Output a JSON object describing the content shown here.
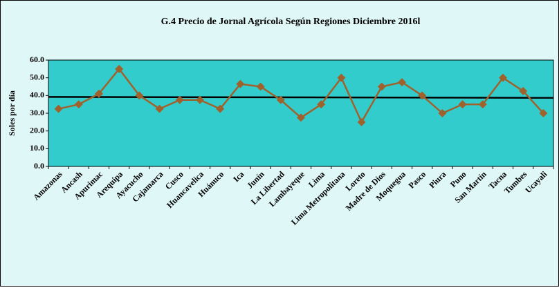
{
  "chart_data": {
    "type": "line",
    "title": "G.4    Precio de Jornal Agrícola Según Regiones Diciembre 2016l",
    "y_label": "Soles  por día",
    "categories": [
      "Amazonas",
      "Ancash",
      "Apurimac",
      "Arequipa",
      "Ayacucho",
      "Cajamarca",
      "Cusco",
      "Huancavelica",
      "Huánuco",
      "Ica",
      "Junín",
      "La Libertad",
      "Lambayeque",
      "Lima",
      "Lima Metropolitana",
      "Loreto",
      "Madre de Dios",
      "Moquegua",
      "Pasco",
      "Piura",
      "Puno",
      "San Martín",
      "Tacna",
      "Tumbes",
      "Ucayali"
    ],
    "series": [
      {
        "color": "#a0622d",
        "values": [
          32.5,
          35,
          41,
          55,
          40,
          32.5,
          37.5,
          37.5,
          32.5,
          46.5,
          45,
          37.5,
          27.5,
          35,
          50,
          25,
          45,
          47.5,
          40,
          30,
          35,
          35,
          50,
          42.5,
          30
        ]
      }
    ],
    "trendline": {
      "color": "#000000",
      "values": [
        39.2,
        38.7
      ]
    },
    "ylim": [
      0,
      60
    ],
    "yticks": [
      {
        "value": 0,
        "label": "0.0"
      },
      {
        "value": 10,
        "label": "10.0"
      },
      {
        "value": 20,
        "label": "20.0"
      },
      {
        "value": 30,
        "label": "30.0"
      },
      {
        "value": 40,
        "label": "40.0"
      },
      {
        "value": 50,
        "label": "50.0"
      },
      {
        "value": 60,
        "label": "60.0"
      }
    ],
    "grid": false,
    "plot_color": "#33cccc"
  }
}
